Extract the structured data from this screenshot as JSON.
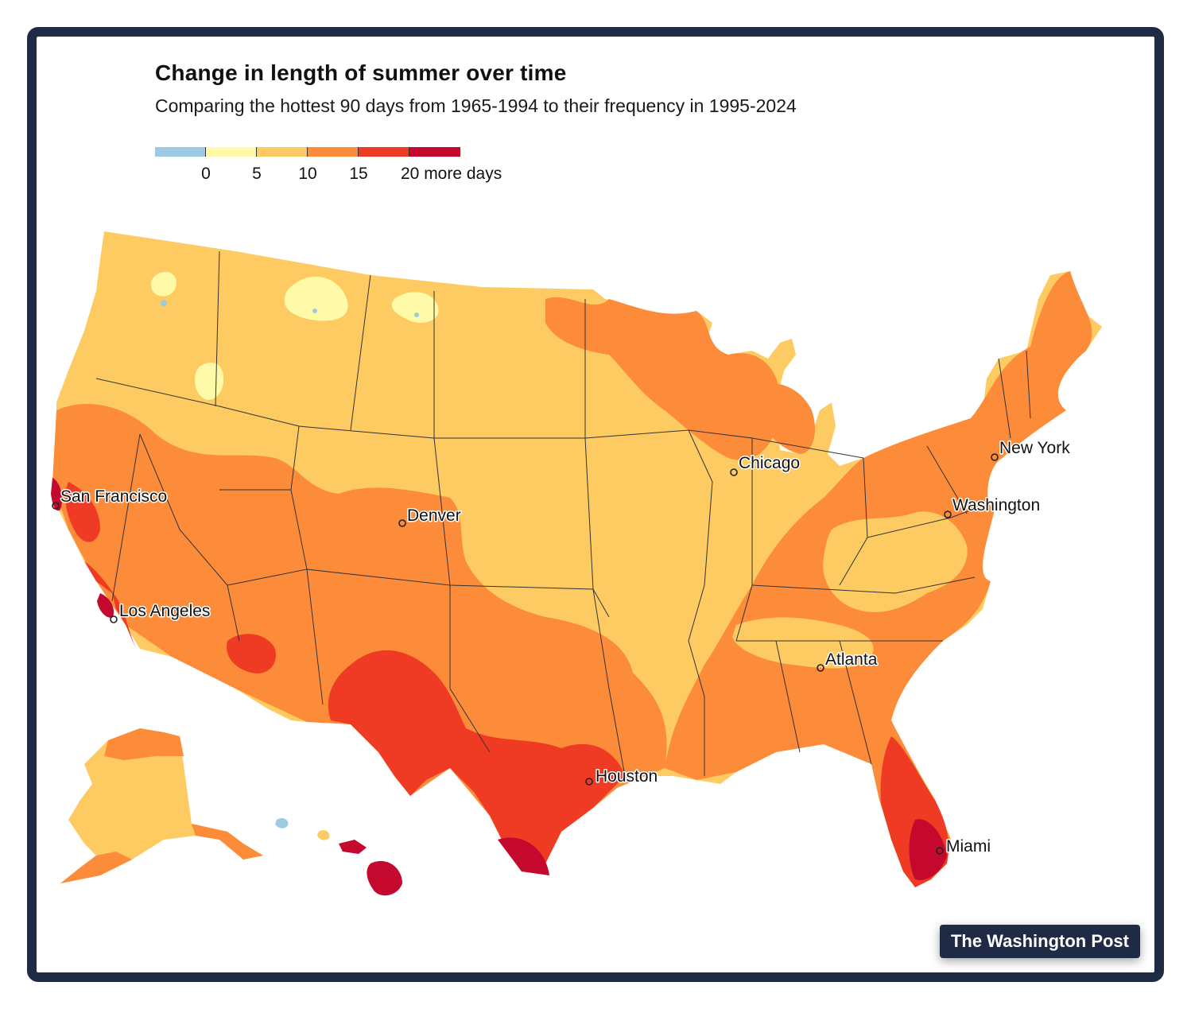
{
  "title": "Change in length of summer over time",
  "subtitle": "Comparing the hottest 90 days from 1965-1994 to their frequency in 1995-2024",
  "legend": {
    "colors": [
      "#9ecae1",
      "#fffaa8",
      "#fdcb62",
      "#fc8b3a",
      "#ef3b24",
      "#c4082e"
    ],
    "ticks": [
      "0",
      "5",
      "10",
      "15",
      "20 more days"
    ]
  },
  "map_colors": {
    "cool": "#9ecae1",
    "c0_5": "#fffaa8",
    "c5_10": "#fdcb62",
    "c10_15": "#fc8b3a",
    "c15_20": "#ef3b24",
    "c20_plus": "#c4082e",
    "boundary": "#333333"
  },
  "cities": [
    {
      "name": "San Francisco"
    },
    {
      "name": "Los Angeles"
    },
    {
      "name": "Denver"
    },
    {
      "name": "Chicago"
    },
    {
      "name": "New York"
    },
    {
      "name": "Washington"
    },
    {
      "name": "Atlanta"
    },
    {
      "name": "Houston"
    },
    {
      "name": "Miami"
    }
  ],
  "credit": "The Washington Post"
}
